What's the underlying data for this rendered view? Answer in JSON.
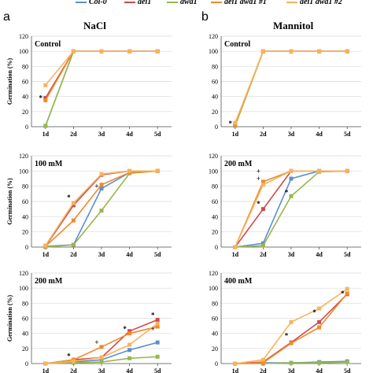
{
  "figure": {
    "panel_labels": [
      "a",
      "b"
    ],
    "column_titles": [
      "NaCl",
      "Mannitol"
    ],
    "legend": [
      {
        "name": "Col-0",
        "color": "#5b8fd0"
      },
      {
        "name": "aei1",
        "color": "#cf4a4a"
      },
      {
        "name": "awa1",
        "color": "#9ab64b"
      },
      {
        "name": "aei1 awa1 #1",
        "color": "#ef8a2c"
      },
      {
        "name": "aei1 awa1 #2",
        "color": "#f7b35e"
      }
    ]
  },
  "chart_data": [
    {
      "type": "line",
      "panel": "NaCl",
      "title": "Control",
      "ylabel": "Germination (%)",
      "ylim": [
        0,
        120
      ],
      "yticks": [
        0,
        20,
        40,
        60,
        80,
        100,
        120
      ],
      "categories": [
        "1d",
        "2d",
        "3d",
        "4d",
        "5d"
      ],
      "annotations": [
        {
          "text": "*",
          "x": "1d",
          "y": 38
        }
      ],
      "series": [
        {
          "name": "Col-0",
          "values": [
            1,
            100,
            100,
            100,
            100
          ]
        },
        {
          "name": "aei1",
          "values": [
            38,
            100,
            100,
            100,
            100
          ]
        },
        {
          "name": "awa1",
          "values": [
            1,
            100,
            100,
            100,
            100
          ]
        },
        {
          "name": "aei1 awa1 #1",
          "values": [
            35,
            100,
            100,
            100,
            100
          ]
        },
        {
          "name": "aei1 awa1 #2",
          "values": [
            55,
            100,
            100,
            100,
            100
          ]
        }
      ]
    },
    {
      "type": "line",
      "panel": "Mannitol",
      "title": "Control",
      "ylim": [
        0,
        120
      ],
      "yticks": [
        0,
        20,
        40,
        60,
        80,
        100,
        120
      ],
      "categories": [
        "1d",
        "2d",
        "3d",
        "4d",
        "5d"
      ],
      "annotations": [
        {
          "text": "*",
          "x": "1d",
          "y": 4
        }
      ],
      "series": [
        {
          "name": "Col-0",
          "values": [
            2,
            100,
            100,
            100,
            100
          ]
        },
        {
          "name": "aei1",
          "values": [
            3,
            100,
            100,
            100,
            100
          ]
        },
        {
          "name": "awa1",
          "values": [
            1,
            100,
            100,
            100,
            100
          ]
        },
        {
          "name": "aei1 awa1 #1",
          "values": [
            3,
            100,
            100,
            100,
            100
          ]
        },
        {
          "name": "aei1 awa1 #2",
          "values": [
            5,
            100,
            100,
            100,
            100
          ]
        }
      ]
    },
    {
      "type": "line",
      "panel": "NaCl",
      "title": "100 mM",
      "ylabel": "Germination (%)",
      "ylim": [
        0,
        120
      ],
      "yticks": [
        0,
        20,
        40,
        60,
        80,
        100,
        120
      ],
      "categories": [
        "1d",
        "2d",
        "3d",
        "4d",
        "5d"
      ],
      "annotations": [
        {
          "text": "*",
          "x": "2d",
          "y": 65
        },
        {
          "text": "+",
          "x": "3d",
          "y": 80
        }
      ],
      "series": [
        {
          "name": "Col-0",
          "values": [
            1,
            3,
            77,
            98,
            100
          ]
        },
        {
          "name": "aei1",
          "values": [
            1,
            55,
            95,
            100,
            100
          ]
        },
        {
          "name": "awa1",
          "values": [
            0,
            3,
            48,
            97,
            100
          ]
        },
        {
          "name": "aei1 awa1 #1",
          "values": [
            1,
            35,
            82,
            98,
            100
          ]
        },
        {
          "name": "aei1 awa1 #2",
          "values": [
            2,
            58,
            96,
            100,
            100
          ]
        }
      ]
    },
    {
      "type": "line",
      "panel": "Mannitol",
      "title": "200 mM",
      "ylim": [
        0,
        120
      ],
      "yticks": [
        0,
        20,
        40,
        60,
        80,
        100,
        120
      ],
      "categories": [
        "1d",
        "2d",
        "3d",
        "4d",
        "5d"
      ],
      "annotations": [
        {
          "text": "+",
          "x": "2d",
          "y": 100
        },
        {
          "text": "+",
          "x": "2d",
          "y": 90
        },
        {
          "text": "*",
          "x": "2d",
          "y": 57
        },
        {
          "text": "*",
          "x": "3d",
          "y": 72
        }
      ],
      "series": [
        {
          "name": "Col-0",
          "values": [
            0,
            5,
            90,
            100,
            100
          ]
        },
        {
          "name": "aei1",
          "values": [
            0,
            50,
            100,
            100,
            100
          ]
        },
        {
          "name": "awa1",
          "values": [
            0,
            2,
            67,
            99,
            100
          ]
        },
        {
          "name": "aei1 awa1 #1",
          "values": [
            0,
            86,
            100,
            100,
            100
          ]
        },
        {
          "name": "aei1 awa1 #2",
          "values": [
            0,
            82,
            100,
            100,
            100
          ]
        }
      ]
    },
    {
      "type": "line",
      "panel": "NaCl",
      "title": "200 mM",
      "ylabel": "Germination (%)",
      "ylim": [
        0,
        120
      ],
      "yticks": [
        0,
        20,
        40,
        60,
        80,
        100,
        120
      ],
      "categories": [
        "1d",
        "2d",
        "3d",
        "4d",
        "5d"
      ],
      "annotations": [
        {
          "text": "*",
          "x": "2d",
          "y": 10
        },
        {
          "text": "+",
          "x": "3d",
          "y": 28
        },
        {
          "text": "*",
          "x": "4d",
          "y": 46
        },
        {
          "text": "*",
          "x": "5d",
          "y": 64
        },
        {
          "text": "+",
          "x": "5d",
          "y": 46
        }
      ],
      "series": [
        {
          "name": "Col-0",
          "values": [
            0,
            2,
            5,
            18,
            28
          ]
        },
        {
          "name": "aei1",
          "values": [
            0,
            5,
            8,
            43,
            58
          ]
        },
        {
          "name": "awa1",
          "values": [
            0,
            1,
            2,
            7,
            9
          ]
        },
        {
          "name": "aei1 awa1 #1",
          "values": [
            0,
            5,
            22,
            40,
            49
          ]
        },
        {
          "name": "aei1 awa1 #2",
          "values": [
            0,
            3,
            8,
            25,
            53
          ]
        }
      ]
    },
    {
      "type": "line",
      "panel": "Mannitol",
      "title": "400 mM",
      "ylim": [
        0,
        120
      ],
      "yticks": [
        0,
        20,
        40,
        60,
        80,
        100,
        120
      ],
      "categories": [
        "1d",
        "2d",
        "3d",
        "4d",
        "5d"
      ],
      "annotations": [
        {
          "text": "*",
          "x": "3d",
          "y": 37
        },
        {
          "text": "*",
          "x": "4d",
          "y": 68
        },
        {
          "text": "*",
          "x": "5d",
          "y": 93
        }
      ],
      "series": [
        {
          "name": "Col-0",
          "values": [
            0,
            1,
            1,
            2,
            3
          ]
        },
        {
          "name": "aei1",
          "values": [
            0,
            2,
            28,
            55,
            92
          ]
        },
        {
          "name": "awa1",
          "values": [
            0,
            0,
            1,
            1,
            2
          ]
        },
        {
          "name": "aei1 awa1 #1",
          "values": [
            0,
            1,
            27,
            48,
            93
          ]
        },
        {
          "name": "aei1 awa1 #2",
          "values": [
            0,
            5,
            55,
            73,
            99
          ]
        }
      ]
    }
  ]
}
